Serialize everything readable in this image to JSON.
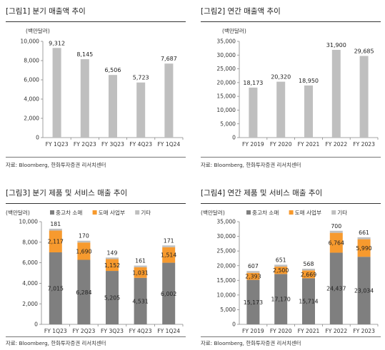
{
  "colors": {
    "gray_bar": "#BFBFBF",
    "used_car": "#7F7F7F",
    "wholesale": "#F79A2E",
    "other": "#BFBFBF"
  },
  "source_text": "자료: Bloomberg, 한화투자증권 리서치센터",
  "charts": [
    {
      "title": "[그림1]  분기 매출액 추이",
      "chart_data": {
        "type": "bar",
        "title": "[그림1]  분기 매출액 추이",
        "unit": "(백만달러)",
        "categories": [
          "FY 1Q23",
          "FY 2Q23",
          "FY 3Q23",
          "FY 4Q23",
          "FY 1Q24"
        ],
        "values": [
          9312,
          8145,
          6506,
          5723,
          7687
        ],
        "data_labels": [
          "9,312",
          "8,145",
          "6,506",
          "5,723",
          "7,687"
        ],
        "ylim": [
          0,
          10000
        ],
        "yticks": [
          "0",
          "2,000",
          "4,000",
          "6,000",
          "8,000",
          "10,000"
        ],
        "grid": false
      }
    },
    {
      "title": "[그림2]  연간 매출액 추이",
      "chart_data": {
        "type": "bar",
        "title": "[그림2]  연간 매출액 추이",
        "unit": "(백만달러)",
        "categories": [
          "FY 2019",
          "FY 2020",
          "FY 2021",
          "FY 2022",
          "FY 2023"
        ],
        "values": [
          18173,
          20320,
          18950,
          31900,
          29685
        ],
        "data_labels": [
          "18,173",
          "20,320",
          "18,950",
          "31,900",
          "29,685"
        ],
        "ylim": [
          0,
          35000
        ],
        "yticks": [
          "0",
          "5,000",
          "10,000",
          "15,000",
          "20,000",
          "25,000",
          "30,000",
          "35,000"
        ],
        "grid": false
      }
    },
    {
      "title": "[그림3]  분기 제품 및 서비스 매출 추이",
      "chart_data": {
        "type": "bar",
        "stacked": true,
        "title": "[그림3]  분기 제품 및 서비스 매출 추이",
        "unit": "(백만달러)",
        "legend_position": "top-left",
        "categories": [
          "FY 1Q23",
          "FY 2Q23",
          "FY 3Q23",
          "FY 4Q23",
          "FY 1Q24"
        ],
        "series": [
          {
            "name": "중고차 소매",
            "values": [
              7015,
              6284,
              5205,
              4531,
              6002
            ],
            "labels": [
              "7,015",
              "6,284",
              "5,205",
              "4,531",
              "6,002"
            ]
          },
          {
            "name": "도매 사업부",
            "values": [
              2117,
              1690,
              1152,
              1031,
              1514
            ],
            "labels": [
              "2,117",
              "1,690",
              "1,152",
              "1,031",
              "1,514"
            ]
          },
          {
            "name": "기타",
            "values": [
              181,
              170,
              149,
              161,
              171
            ],
            "labels": [
              "181",
              "170",
              "149",
              "161",
              "171"
            ]
          }
        ],
        "ylim": [
          0,
          10000
        ],
        "yticks": [
          "0",
          "2,000",
          "4,000",
          "6,000",
          "8,000",
          "10,000"
        ],
        "grid": false
      }
    },
    {
      "title": "[그림4]  연간 제품 및 서비스 매출 추이",
      "chart_data": {
        "type": "bar",
        "stacked": true,
        "title": "[그림4]  연간 제품 및 서비스 매출 추이",
        "unit": "(백만달러)",
        "legend_position": "top-left",
        "categories": [
          "FY 2019",
          "FY 2020",
          "FY 2021",
          "FY 2022",
          "FY 2023"
        ],
        "series": [
          {
            "name": "중고차 소매",
            "values": [
              15173,
              17170,
              15714,
              24437,
              23034
            ],
            "labels": [
              "15,173",
              "17,170",
              "15,714",
              "24,437",
              "23,034"
            ]
          },
          {
            "name": "도매 사업부",
            "values": [
              2393,
              2500,
              2669,
              6764,
              5990
            ],
            "labels": [
              "2,393",
              "2,500",
              "2,669",
              "6,764",
              "5,990"
            ]
          },
          {
            "name": "기타",
            "values": [
              607,
              651,
              568,
              700,
              661
            ],
            "labels": [
              "607",
              "651",
              "568",
              "700",
              "661"
            ]
          }
        ],
        "ylim": [
          0,
          35000
        ],
        "yticks": [
          "0",
          "5,000",
          "10,000",
          "15,000",
          "20,000",
          "25,000",
          "30,000",
          "35,000"
        ],
        "grid": false
      }
    }
  ]
}
